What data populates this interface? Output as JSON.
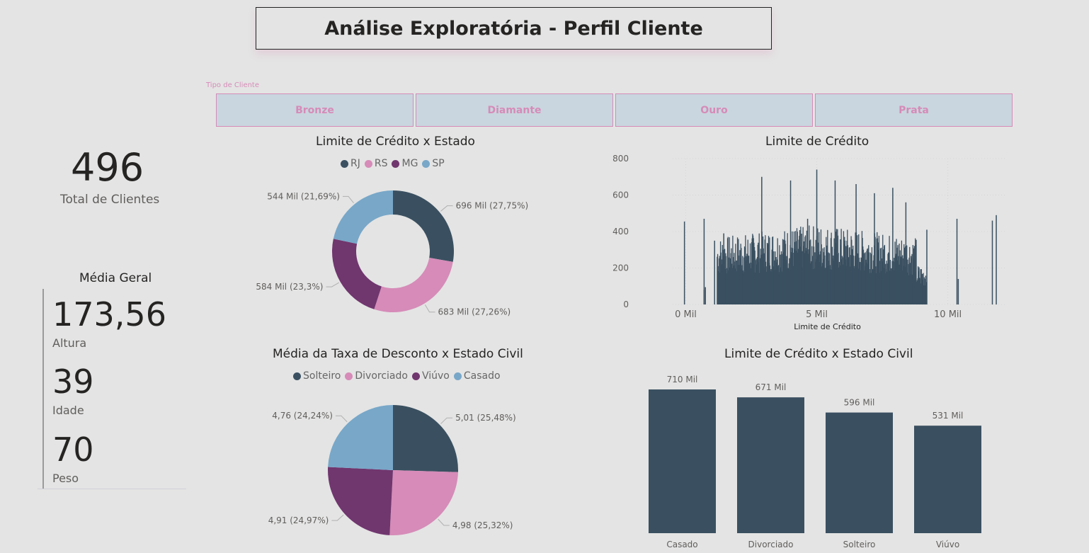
{
  "header": {
    "title": "Análise Exploratória - Perfil Cliente"
  },
  "slicer": {
    "title": "Tipo de Cliente",
    "options": [
      "Bronze",
      "Diamante",
      "Ouro",
      "Prata"
    ]
  },
  "kpi": {
    "total_value": "496",
    "total_label": "Total de Clientes"
  },
  "media_geral": {
    "title": "Média Geral",
    "items": [
      {
        "value": "173,56",
        "label": "Altura"
      },
      {
        "value": "39",
        "label": "Idade"
      },
      {
        "value": "70",
        "label": "Peso"
      }
    ]
  },
  "colors": {
    "dark": "#3a5061",
    "pink": "#d68bb8",
    "purple": "#70366e",
    "blue": "#78a7c8",
    "bg": "#e4e4e4"
  },
  "chart_data": [
    {
      "id": "donut",
      "type": "pie",
      "variant": "donut",
      "title": "Limite de Crédito x Estado",
      "legend": [
        "RJ",
        "RS",
        "MG",
        "SP"
      ],
      "values": [
        696,
        683,
        584,
        544
      ],
      "labels": [
        "696 Mil (27,75%)",
        "683 Mil (27,26%)",
        "584 Mil (23,3%)",
        "544 Mil (21,69%)"
      ],
      "colors": [
        "#3a5061",
        "#d68bb8",
        "#70366e",
        "#78a7c8"
      ]
    },
    {
      "id": "hist",
      "type": "bar",
      "title": "Limite de Crédito",
      "xlabel": "Limite de Crédito",
      "x_ticks": [
        "0 Mil",
        "5 Mil",
        "10 Mil"
      ],
      "y_ticks": [
        "0",
        "200",
        "400",
        "600",
        "800"
      ],
      "ylim": [
        0,
        800
      ],
      "xlim": [
        -0.5,
        12.2
      ],
      "color": "#3a5061",
      "spikes": [
        [
          -0.05,
          455
        ],
        [
          0.7,
          80
        ],
        [
          0.75,
          95
        ],
        [
          0.7,
          470
        ],
        [
          1.1,
          350
        ],
        [
          1.45,
          390
        ],
        [
          5.0,
          740
        ],
        [
          2.9,
          700
        ],
        [
          10.4,
          140
        ],
        [
          10.35,
          470
        ],
        [
          11.7,
          460
        ],
        [
          11.85,
          490
        ],
        [
          4.0,
          680
        ],
        [
          4.65,
          470
        ],
        [
          5.7,
          680
        ],
        [
          6.5,
          660
        ],
        [
          7.2,
          610
        ],
        [
          7.9,
          640
        ],
        [
          8.4,
          560
        ],
        [
          9.2,
          410
        ]
      ],
      "series_note": ""
    },
    {
      "id": "pie",
      "type": "pie",
      "title": "Média da Taxa de Desconto x Estado Civil",
      "legend": [
        "Solteiro",
        "Divorciado",
        "Viúvo",
        "Casado"
      ],
      "values": [
        5.01,
        4.98,
        4.91,
        4.76
      ],
      "labels": [
        "5,01 (25,48%)",
        "4,98 (25,32%)",
        "4,91 (24,97%)",
        "4,76 (24,24%)"
      ],
      "colors": [
        "#3a5061",
        "#d68bb8",
        "#70366e",
        "#78a7c8"
      ]
    },
    {
      "id": "bar",
      "type": "bar",
      "title": "Limite de Crédito x Estado Civil",
      "categories": [
        "Casado",
        "Divorciado",
        "Solteiro",
        "Viúvo"
      ],
      "values": [
        710,
        671,
        596,
        531
      ],
      "labels": [
        "710 Mil",
        "671 Mil",
        "596 Mil",
        "531 Mil"
      ],
      "color": "#3a5061"
    }
  ]
}
